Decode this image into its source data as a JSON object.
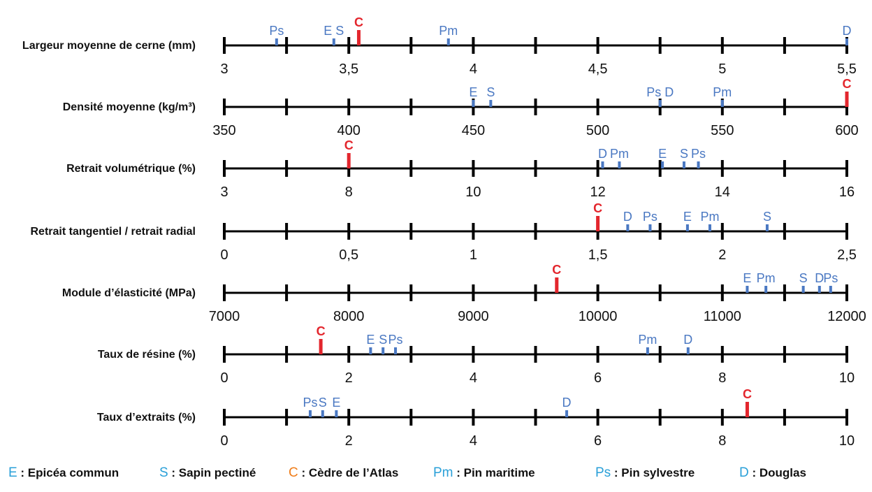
{
  "colors": {
    "softwood": "#4a78c2",
    "cedar": "#e3262d",
    "axis": "#000000",
    "legend_e": "#2aa0d8",
    "legend_s": "#2aa0d8",
    "legend_c": "#ef7d1a",
    "legend_pm": "#2aa0d8",
    "legend_ps": "#2aa0d8",
    "legend_d": "#2aa0d8"
  },
  "chart_data": {
    "type": "scatter",
    "rows": [
      {
        "label": "Largeur moyenne de cerne (mm)",
        "min": 3,
        "max": 5.5,
        "ticks": [
          3,
          3.25,
          3.5,
          3.75,
          4,
          4.25,
          4.5,
          4.75,
          5,
          5.25,
          5.5
        ],
        "tick_labels": [
          {
            "value": 3,
            "text": "3"
          },
          {
            "value": 3.5,
            "text": "3,5"
          },
          {
            "value": 4,
            "text": "4"
          },
          {
            "value": 4.5,
            "text": "4,5"
          },
          {
            "value": 5,
            "text": "5"
          },
          {
            "value": 5.5,
            "text": "5,5"
          }
        ],
        "markers": [
          {
            "code": "Ps",
            "value": 3.21
          },
          {
            "code": "E S",
            "value": 3.44
          },
          {
            "code": "C",
            "value": 3.54
          },
          {
            "code": "Pm",
            "value": 3.9
          },
          {
            "code": "D",
            "value": 5.5
          }
        ]
      },
      {
        "label": "Densité moyenne (kg/m³)",
        "min": 350,
        "max": 600,
        "ticks": [
          350,
          375,
          400,
          425,
          450,
          475,
          500,
          525,
          550,
          575,
          600
        ],
        "tick_labels": [
          {
            "value": 350,
            "text": "350"
          },
          {
            "value": 400,
            "text": "400"
          },
          {
            "value": 450,
            "text": "450"
          },
          {
            "value": 500,
            "text": "500"
          },
          {
            "value": 550,
            "text": "550"
          },
          {
            "value": 600,
            "text": "600"
          }
        ],
        "markers": [
          {
            "code": "E",
            "value": 450
          },
          {
            "code": "S",
            "value": 457
          },
          {
            "code": "Ps D",
            "value": 525
          },
          {
            "code": "Pm",
            "value": 550
          },
          {
            "code": "C",
            "value": 600
          }
        ]
      },
      {
        "label": "Retrait volumétrique (%)",
        "min": 3,
        "max": 16,
        "ticks": [
          3,
          4.3,
          5.6,
          6.9,
          8.2,
          9.5,
          10.8,
          12.1,
          13.4,
          14.7,
          16
        ],
        "tick_labels": [
          {
            "value": 3,
            "text": "3"
          },
          {
            "value": 8,
            "text": "8"
          },
          {
            "value": 10,
            "text": "10"
          },
          {
            "value": 12,
            "text": "12"
          },
          {
            "value": 14,
            "text": "14"
          },
          {
            "value": 16,
            "text": "16"
          }
        ],
        "tick_label_positions": [
          3,
          5.6,
          8.2,
          10.8,
          13.4,
          16
        ],
        "markers": [
          {
            "code": "C",
            "value": 5.6
          },
          {
            "code": "D",
            "value": 10.9
          },
          {
            "code": "Pm",
            "value": 11.25
          },
          {
            "code": "E",
            "value": 12.15
          },
          {
            "code": "S",
            "value": 12.6
          },
          {
            "code": "Ps",
            "value": 12.9
          }
        ]
      },
      {
        "label": "Retrait tangentiel / retrait radial",
        "min": 0,
        "max": 2.5,
        "ticks": [
          0,
          0.25,
          0.5,
          0.75,
          1,
          1.25,
          1.5,
          1.75,
          2,
          2.25,
          2.5
        ],
        "tick_labels": [
          {
            "value": 0,
            "text": "0"
          },
          {
            "value": 0.5,
            "text": "0,5"
          },
          {
            "value": 1,
            "text": "1"
          },
          {
            "value": 1.5,
            "text": "1,5"
          },
          {
            "value": 2,
            "text": "2"
          },
          {
            "value": 2.5,
            "text": "2,5"
          }
        ],
        "markers": [
          {
            "code": "C",
            "value": 1.5
          },
          {
            "code": "D",
            "value": 1.62
          },
          {
            "code": "Ps",
            "value": 1.71
          },
          {
            "code": "E",
            "value": 1.86
          },
          {
            "code": "Pm",
            "value": 1.95
          },
          {
            "code": "S",
            "value": 2.18
          }
        ]
      },
      {
        "label": "Module d’élasticité (MPa)",
        "min": 7000,
        "max": 12000,
        "ticks": [
          7000,
          7500,
          8000,
          8500,
          9000,
          9500,
          10000,
          10500,
          11000,
          11500,
          12000
        ],
        "tick_labels": [
          {
            "value": 7000,
            "text": "7000"
          },
          {
            "value": 8000,
            "text": "8000"
          },
          {
            "value": 9000,
            "text": "9000"
          },
          {
            "value": 10000,
            "text": "10000"
          },
          {
            "value": 11000,
            "text": "11000"
          },
          {
            "value": 12000,
            "text": "12000"
          }
        ],
        "markers": [
          {
            "code": "C",
            "value": 9670
          },
          {
            "code": "E",
            "value": 11200
          },
          {
            "code": "Pm",
            "value": 11350
          },
          {
            "code": "S",
            "value": 11650
          },
          {
            "code": "D",
            "value": 11780
          },
          {
            "code": "Ps",
            "value": 11870
          }
        ]
      },
      {
        "label": "Taux de résine (%)",
        "min": 0,
        "max": 10,
        "ticks": [
          0,
          1,
          2,
          3,
          4,
          5,
          6,
          7,
          8,
          9,
          10
        ],
        "tick_labels": [
          {
            "value": 0,
            "text": "0"
          },
          {
            "value": 2,
            "text": "2"
          },
          {
            "value": 4,
            "text": "4"
          },
          {
            "value": 6,
            "text": "6"
          },
          {
            "value": 8,
            "text": "8"
          },
          {
            "value": 10,
            "text": "10"
          }
        ],
        "markers": [
          {
            "code": "C",
            "value": 1.55
          },
          {
            "code": "E",
            "value": 2.35
          },
          {
            "code": "S",
            "value": 2.55
          },
          {
            "code": "Ps",
            "value": 2.75
          },
          {
            "code": "Pm",
            "value": 6.8
          },
          {
            "code": "D",
            "value": 7.45
          }
        ]
      },
      {
        "label": "Taux d’extraits (%)",
        "min": 0,
        "max": 10,
        "ticks": [
          0,
          1,
          2,
          3,
          4,
          5,
          6,
          7,
          8,
          9,
          10
        ],
        "tick_labels": [
          {
            "value": 0,
            "text": "0"
          },
          {
            "value": 2,
            "text": "2"
          },
          {
            "value": 4,
            "text": "4"
          },
          {
            "value": 6,
            "text": "6"
          },
          {
            "value": 8,
            "text": "8"
          },
          {
            "value": 10,
            "text": "10"
          }
        ],
        "markers": [
          {
            "code": "Ps",
            "value": 1.38
          },
          {
            "code": "S",
            "value": 1.58
          },
          {
            "code": "E",
            "value": 1.8
          },
          {
            "code": "D",
            "value": 5.5
          },
          {
            "code": "C",
            "value": 8.4
          }
        ]
      }
    ],
    "legend": [
      {
        "code": "E",
        "text": " : Epicéa commun"
      },
      {
        "code": "S",
        "text": " : Sapin pectiné"
      },
      {
        "code": "C",
        "text": " : Cèdre de l’Atlas"
      },
      {
        "code": "Pm",
        "text": " : Pin maritime"
      },
      {
        "code": "Ps",
        "text": " : Pin sylvestre"
      },
      {
        "code": "D",
        "text": " : Douglas"
      }
    ]
  }
}
